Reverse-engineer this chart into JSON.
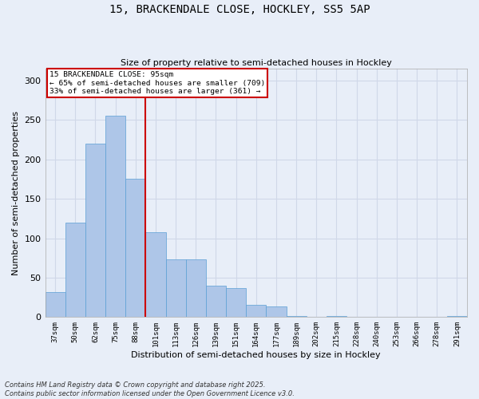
{
  "title_line1": "15, BRACKENDALE CLOSE, HOCKLEY, SS5 5AP",
  "title_line2": "Size of property relative to semi-detached houses in Hockley",
  "xlabel": "Distribution of semi-detached houses by size in Hockley",
  "ylabel": "Number of semi-detached properties",
  "categories": [
    "37sqm",
    "50sqm",
    "62sqm",
    "75sqm",
    "88sqm",
    "101sqm",
    "113sqm",
    "126sqm",
    "139sqm",
    "151sqm",
    "164sqm",
    "177sqm",
    "189sqm",
    "202sqm",
    "215sqm",
    "228sqm",
    "240sqm",
    "253sqm",
    "266sqm",
    "278sqm",
    "291sqm"
  ],
  "values": [
    32,
    120,
    220,
    255,
    175,
    108,
    73,
    73,
    40,
    37,
    16,
    14,
    1,
    0,
    1,
    0,
    0,
    0,
    0,
    0,
    1
  ],
  "bar_color": "#aec6e8",
  "bar_edge_color": "#5a9fd4",
  "grid_color": "#d0d8e8",
  "background_color": "#e8eef8",
  "vline_color": "#cc0000",
  "annotation_title": "15 BRACKENDALE CLOSE: 95sqm",
  "annotation_line2": "← 65% of semi-detached houses are smaller (709)",
  "annotation_line3": "33% of semi-detached houses are larger (361) →",
  "annotation_box_color": "#cc0000",
  "footnote_line1": "Contains HM Land Registry data © Crown copyright and database right 2025.",
  "footnote_line2": "Contains public sector information licensed under the Open Government Licence v3.0.",
  "ylim": [
    0,
    315
  ],
  "yticks": [
    0,
    50,
    100,
    150,
    200,
    250,
    300
  ]
}
